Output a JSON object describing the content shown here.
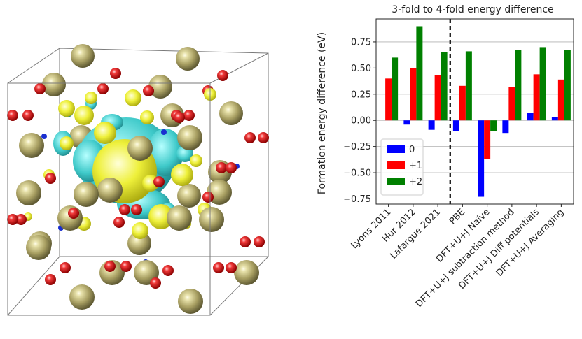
{
  "chart_data": {
    "type": "bar",
    "title": "3-fold to 4-fold energy difference",
    "xlabel": "",
    "ylabel": "Formation energy difference (eV)",
    "ylim": [
      -0.8,
      0.97
    ],
    "yticks": [
      -0.75,
      -0.5,
      -0.25,
      0.0,
      0.25,
      0.5,
      0.75
    ],
    "ytick_labels": [
      "−0.75",
      "−0.50",
      "−0.25",
      "0.00",
      "0.25",
      "0.50",
      "0.75"
    ],
    "grid": "horizontal",
    "legend_position": "lower-left",
    "categories": [
      "Lyons 2011",
      "Hur 2012",
      "Lafargue 2021",
      "PBE",
      "DFT+U+J Naïve",
      "DFT+U+J subtraction method",
      "DFT+U+J Diff potentials",
      "DFT+U+J Averaging"
    ],
    "divider_after_index": 2,
    "series": [
      {
        "name": "0",
        "color": "#0000ff",
        "values": [
          null,
          -0.04,
          -0.09,
          -0.1,
          -0.73,
          -0.12,
          0.07,
          0.03
        ]
      },
      {
        "name": "+1",
        "color": "#ff0000",
        "values": [
          0.4,
          0.5,
          0.43,
          0.33,
          -0.37,
          0.32,
          0.44,
          0.39
        ]
      },
      {
        "name": "+2",
        "color": "#008000",
        "values": [
          0.6,
          0.9,
          0.65,
          0.66,
          -0.1,
          0.67,
          0.7,
          0.67
        ]
      }
    ]
  },
  "figure": {
    "left_panel_icon": "crystal-structure-isosurface-icon",
    "colors": {
      "large_atom": "#a89f62",
      "small_atom": "#dd1a1a",
      "isosurface_yellow": "#eef03a",
      "isosurface_cyan": "#3ec9c9",
      "box_edge": "#777777"
    }
  }
}
